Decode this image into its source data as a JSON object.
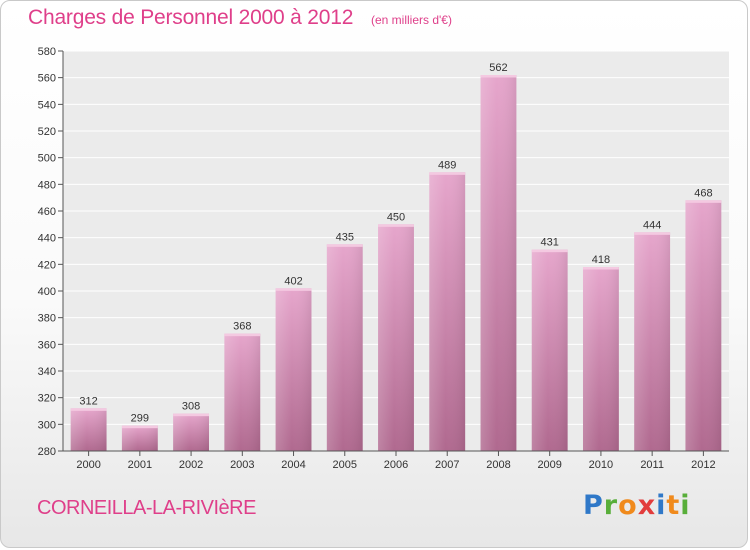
{
  "header": {
    "title": "Charges de Personnel 2000 à 2012",
    "subtitle": "(en milliers d'€)"
  },
  "footer": {
    "commune": "CORNEILLA-LA-RIVIèRE",
    "logo_text": "Proxiti"
  },
  "colors": {
    "accent": "#df3f8a",
    "bar_top": "#e6a6cc",
    "bar_bottom": "#b0698f"
  },
  "chart_data": {
    "type": "bar",
    "categories": [
      "2000",
      "2001",
      "2002",
      "2003",
      "2004",
      "2005",
      "2006",
      "2007",
      "2008",
      "2009",
      "2010",
      "2011",
      "2012"
    ],
    "values": [
      312,
      299,
      308,
      368,
      402,
      435,
      450,
      489,
      562,
      431,
      418,
      444,
      468
    ],
    "ylim": [
      280,
      580
    ],
    "yticks": [
      280,
      300,
      320,
      340,
      360,
      380,
      400,
      420,
      440,
      460,
      480,
      500,
      520,
      540,
      560,
      580
    ],
    "grid": true,
    "data_labels": true
  }
}
